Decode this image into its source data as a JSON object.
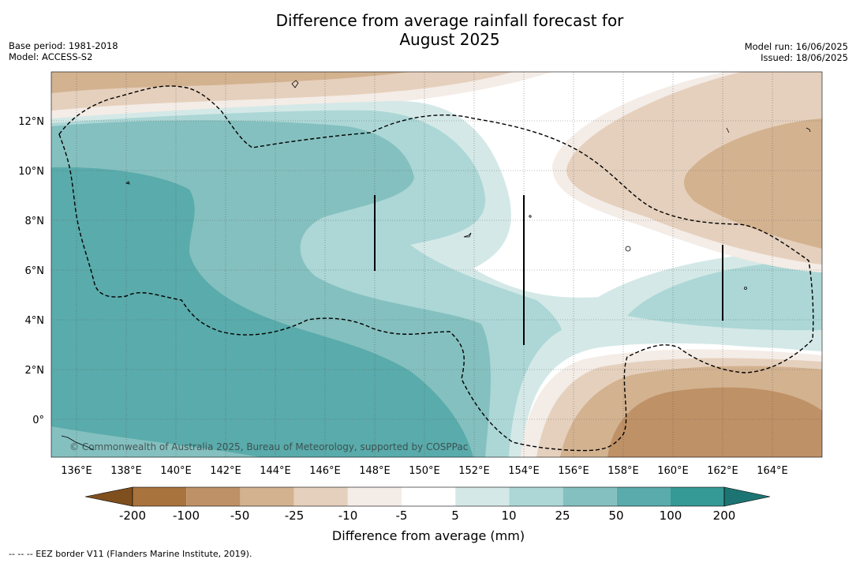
{
  "title_line1": "Difference from average rainfall forecast for",
  "title_line2": "August 2025",
  "base_period": "Base period: 1981-2018",
  "model": "Model: ACCESS-S2",
  "model_run": "Model run: 16/06/2025",
  "issued": "Issued: 18/06/2025",
  "credit": "© Commonwealth of Australia 2025, Bureau of Meteorology, supported by COSPPac",
  "map": {
    "lat_ticks": [
      "12°N",
      "10°N",
      "8°N",
      "6°N",
      "4°N",
      "2°N",
      "0°"
    ],
    "lon_ticks": [
      "136°E",
      "138°E",
      "140°E",
      "142°E",
      "144°E",
      "146°E",
      "148°E",
      "150°E",
      "152°E",
      "154°E",
      "156°E",
      "158°E",
      "160°E",
      "162°E",
      "164°E"
    ]
  },
  "colorbar": {
    "label": "Difference from average (mm)",
    "tick_labels": [
      "-200",
      "-100",
      "-50",
      "-25",
      "-10",
      "-5",
      "5",
      "10",
      "25",
      "50",
      "100",
      "200"
    ],
    "colors": [
      "#7f4f1e",
      "#a9733d",
      "#bf9166",
      "#d3b290",
      "#e5d0bd",
      "#f4ece6",
      "#ffffff",
      "#d4e9e7",
      "#acd7d6",
      "#84c0bf",
      "#5aabab",
      "#359996",
      "#1c7572"
    ]
  },
  "footer": "--  --  -- EEZ border V11 (Flanders Marine Institute, 2019)."
}
